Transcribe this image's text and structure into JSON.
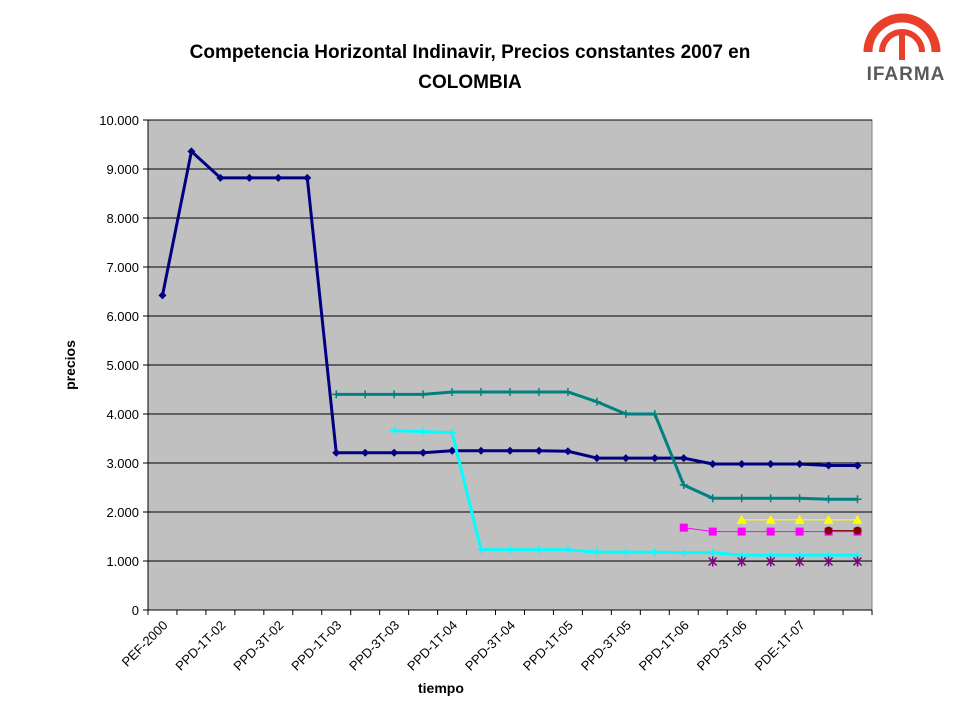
{
  "chart_data": {
    "type": "line",
    "title_line1": "Competencia Horizontal Indinavir, Precios constantes 2007 en",
    "title_line2": "COLOMBIA",
    "xlabel": "tiempo",
    "ylabel": "precios",
    "ylim": [
      0,
      10000
    ],
    "y_ticks": [
      "0",
      "1.000",
      "2.000",
      "3.000",
      "4.000",
      "5.000",
      "6.000",
      "7.000",
      "8.000",
      "9.000",
      "10.000"
    ],
    "x_tick_labels": [
      "PEF-2000",
      "PPD-1T-02",
      "PPD-3T-02",
      "PPD-1T-03",
      "PPD-3T-03",
      "PPD-1T-04",
      "PPD-3T-04",
      "PPD-1T-05",
      "PPD-3T-05",
      "PPD-1T-06",
      "PPD-3T-06",
      "PDE-1T-07"
    ],
    "grid": true,
    "plot_background": "#c0c0c0",
    "series": [
      {
        "color": "#000080",
        "marker": "diamond",
        "values": [
          6420,
          9360,
          8820,
          8820,
          8820,
          8820,
          3210,
          3210,
          3210,
          3210,
          3250,
          3250,
          3250,
          3250,
          3240,
          3100,
          3100,
          3100,
          3100,
          2980,
          2980,
          2980,
          2980,
          2950,
          2950
        ]
      },
      {
        "color": "#008080",
        "marker": "plus",
        "values": [
          null,
          null,
          null,
          null,
          null,
          null,
          4400,
          4400,
          4400,
          4400,
          4450,
          4450,
          4450,
          4450,
          4450,
          4250,
          4000,
          4000,
          2550,
          2280,
          2280,
          2280,
          2280,
          2260,
          2260
        ]
      },
      {
        "color": "#00ffff",
        "marker": "plus",
        "values": [
          null,
          null,
          null,
          null,
          null,
          null,
          null,
          null,
          3660,
          3640,
          3620,
          1230,
          1230,
          1230,
          1230,
          1180,
          1180,
          1180,
          1170,
          1170,
          1120,
          1120,
          1120,
          1120,
          1120
        ]
      },
      {
        "color": "#ff00ff",
        "marker": "square",
        "values": [
          null,
          null,
          null,
          null,
          null,
          null,
          null,
          null,
          null,
          null,
          null,
          null,
          null,
          null,
          null,
          null,
          null,
          null,
          1680,
          1600,
          1600,
          1600,
          1600,
          1600,
          1600
        ]
      },
      {
        "color": "#ffff00",
        "marker": "triangle",
        "values": [
          null,
          null,
          null,
          null,
          null,
          null,
          null,
          null,
          null,
          null,
          null,
          null,
          null,
          null,
          null,
          null,
          null,
          null,
          null,
          null,
          1840,
          1840,
          1840,
          1840,
          1840
        ]
      },
      {
        "color": "#800000",
        "marker": "circle",
        "values": [
          null,
          null,
          null,
          null,
          null,
          null,
          null,
          null,
          null,
          null,
          null,
          null,
          null,
          null,
          null,
          null,
          null,
          null,
          null,
          null,
          null,
          null,
          null,
          1620,
          1620
        ]
      },
      {
        "color": "#800080",
        "marker": "asterisk",
        "values": [
          null,
          null,
          null,
          null,
          null,
          null,
          null,
          null,
          null,
          null,
          null,
          null,
          null,
          null,
          null,
          null,
          null,
          null,
          null,
          990,
          990,
          990,
          990,
          990,
          990
        ]
      }
    ]
  },
  "logo": {
    "text": "IFARMA",
    "colors": {
      "arc": "#e8402a",
      "text": "#5a5a5a"
    }
  }
}
